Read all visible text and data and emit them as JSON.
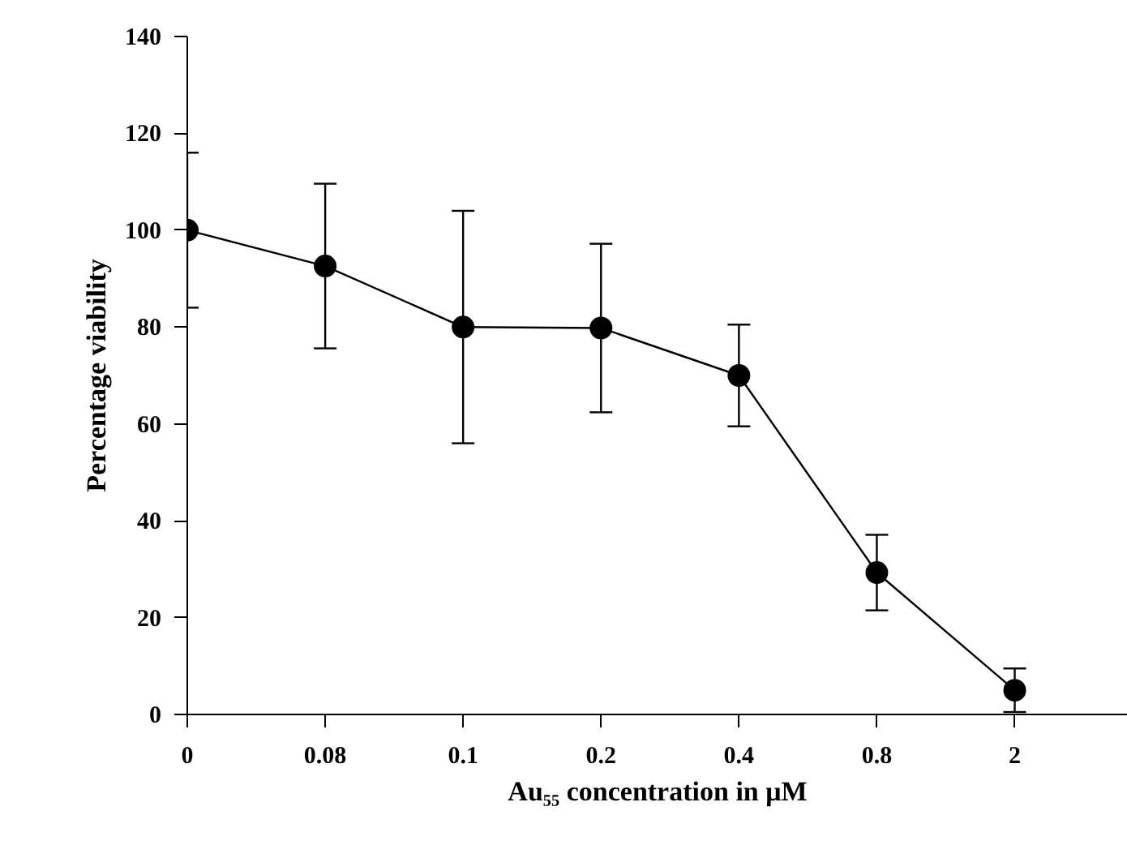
{
  "chart_data": {
    "type": "line",
    "xlabel": "Au₅₅ concentration in μM",
    "ylabel": "Percentage viability",
    "categories": [
      "0",
      "0.08",
      "0.1",
      "0.2",
      "0.4",
      "0.8",
      "2"
    ],
    "series": [
      {
        "color": "#000000",
        "values": [
          100,
          92.6,
          80,
          79.8,
          70,
          29.3,
          5.0
        ],
        "errors": [
          16,
          17,
          24,
          17.4,
          10.5,
          7.8,
          4.5
        ]
      }
    ],
    "ylim": [
      0,
      140
    ],
    "yticks": [
      0,
      20,
      40,
      60,
      80,
      100,
      120,
      140
    ],
    "grid": false,
    "marker": "circle",
    "line_style": "solid"
  }
}
